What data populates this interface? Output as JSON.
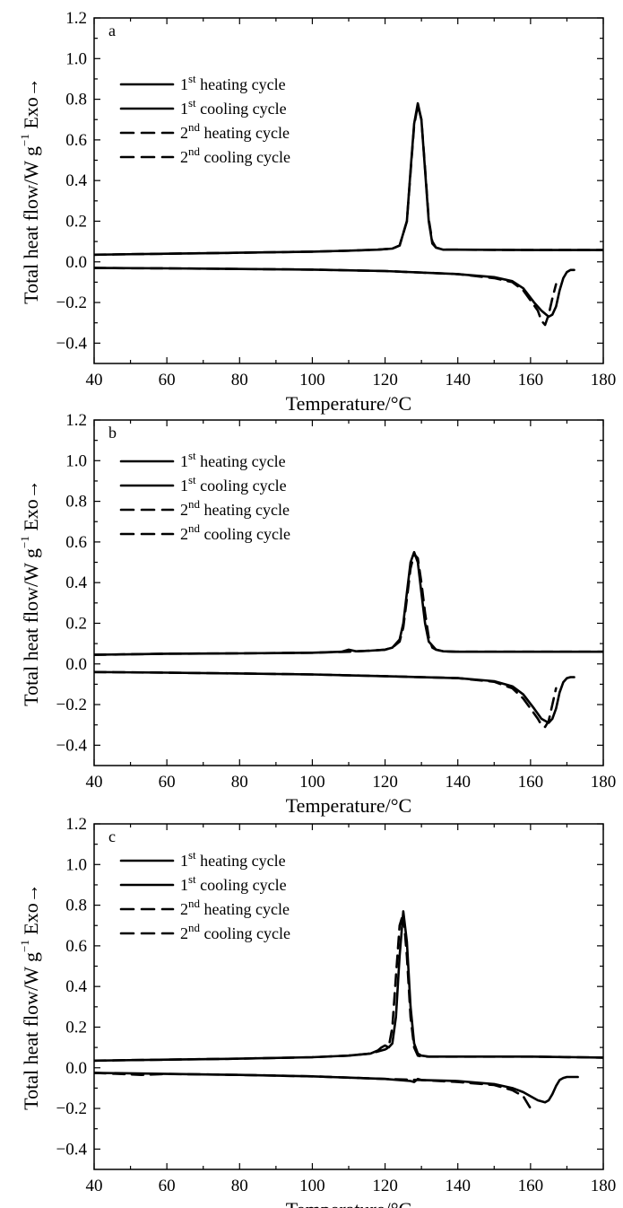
{
  "chart_data": [
    {
      "type": "line",
      "panel_label": "a",
      "xlabel": "Temperature/°C",
      "ylabel": "Total heat flow/W g",
      "ylabel_exp": "−1",
      "ylabel_suffix": "Exo→",
      "xlim": [
        40,
        180
      ],
      "ylim": [
        -0.5,
        1.2
      ],
      "xticks": [
        "40",
        "60",
        "80",
        "100",
        "120",
        "140",
        "160",
        "180"
      ],
      "yticks": [
        "−0.4",
        "−0.2",
        "0.0",
        "0.2",
        "0.4",
        "0.6",
        "0.8",
        "1.0",
        "1.2"
      ],
      "legend": [
        {
          "base": "1",
          "sup": "st",
          "text": " heating cycle",
          "style": "solid"
        },
        {
          "base": "1",
          "sup": "st",
          "text": " cooling cycle",
          "style": "solid"
        },
        {
          "base": "2",
          "sup": "nd",
          "text": "  heating cycle",
          "style": "dashed"
        },
        {
          "base": "2",
          "sup": "nd",
          "text": "  cooling cycle",
          "style": "dashed"
        }
      ],
      "series": [
        {
          "style": "solid",
          "x": [
            40,
            60,
            80,
            100,
            110,
            118,
            122,
            124,
            126,
            127,
            128,
            129,
            130,
            131,
            132,
            133,
            134,
            136,
            140,
            160,
            180
          ],
          "y": [
            0.035,
            0.04,
            0.045,
            0.05,
            0.055,
            0.06,
            0.065,
            0.08,
            0.2,
            0.45,
            0.68,
            0.78,
            0.7,
            0.45,
            0.2,
            0.09,
            0.07,
            0.06,
            0.06,
            0.058,
            0.058
          ]
        },
        {
          "style": "dashed",
          "x": [
            40,
            60,
            80,
            100,
            110,
            118,
            122,
            124,
            126,
            127,
            128,
            129,
            130,
            131,
            132,
            133,
            134,
            136,
            140,
            160,
            180
          ],
          "y": [
            0.035,
            0.04,
            0.045,
            0.05,
            0.055,
            0.06,
            0.065,
            0.08,
            0.2,
            0.44,
            0.67,
            0.77,
            0.7,
            0.46,
            0.21,
            0.1,
            0.07,
            0.06,
            0.06,
            0.058,
            0.058
          ]
        },
        {
          "style": "solid",
          "x": [
            40,
            60,
            80,
            100,
            120,
            140,
            150,
            155,
            158,
            161,
            163,
            165,
            166,
            167,
            168,
            169,
            170,
            171,
            172
          ],
          "y": [
            -0.03,
            -0.032,
            -0.035,
            -0.038,
            -0.045,
            -0.06,
            -0.075,
            -0.095,
            -0.13,
            -0.2,
            -0.24,
            -0.27,
            -0.26,
            -0.22,
            -0.14,
            -0.08,
            -0.05,
            -0.04,
            -0.04
          ]
        },
        {
          "style": "dashed",
          "x": [
            40,
            60,
            80,
            100,
            120,
            140,
            150,
            155,
            158,
            160,
            162,
            163,
            164,
            165,
            166,
            167
          ],
          "y": [
            -0.03,
            -0.032,
            -0.035,
            -0.038,
            -0.045,
            -0.06,
            -0.08,
            -0.1,
            -0.14,
            -0.19,
            -0.24,
            -0.29,
            -0.31,
            -0.26,
            -0.18,
            -0.11
          ]
        }
      ]
    },
    {
      "type": "line",
      "panel_label": "b",
      "xlabel": "Temperature/°C",
      "ylabel": "Total heat flow/W g",
      "ylabel_exp": "−1",
      "ylabel_suffix": "Exo→",
      "xlim": [
        40,
        180
      ],
      "ylim": [
        -0.5,
        1.2
      ],
      "xticks": [
        "40",
        "60",
        "80",
        "100",
        "120",
        "140",
        "160",
        "180"
      ],
      "yticks": [
        "−0.4",
        "−0.2",
        "0.0",
        "0.2",
        "0.4",
        "0.6",
        "0.8",
        "1.0",
        "1.2"
      ],
      "legend": [
        {
          "base": "1",
          "sup": "st",
          "text": " heating cycle",
          "style": "solid"
        },
        {
          "base": "1",
          "sup": "st",
          "text": " cooling cycle",
          "style": "solid"
        },
        {
          "base": "2",
          "sup": "nd",
          "text": "  heating cycle",
          "style": "dashed"
        },
        {
          "base": "2",
          "sup": "nd",
          "text": "  cooling cycle",
          "style": "dashed"
        }
      ],
      "series": [
        {
          "style": "solid",
          "x": [
            40,
            60,
            80,
            100,
            108,
            110,
            112,
            116,
            120,
            122,
            124,
            125,
            126,
            127,
            128,
            129,
            130,
            131,
            132,
            134,
            136,
            140,
            160,
            180
          ],
          "y": [
            0.045,
            0.05,
            0.052,
            0.055,
            0.06,
            0.07,
            0.062,
            0.065,
            0.07,
            0.08,
            0.12,
            0.2,
            0.35,
            0.5,
            0.55,
            0.5,
            0.35,
            0.2,
            0.11,
            0.07,
            0.062,
            0.06,
            0.06,
            0.06
          ]
        },
        {
          "style": "dashed",
          "x": [
            40,
            60,
            80,
            100,
            110,
            116,
            120,
            122,
            124,
            125,
            126,
            127,
            128,
            129,
            130,
            131,
            132,
            133,
            134,
            136,
            140,
            160,
            180
          ],
          "y": [
            0.045,
            0.05,
            0.052,
            0.055,
            0.06,
            0.065,
            0.07,
            0.08,
            0.11,
            0.18,
            0.32,
            0.47,
            0.54,
            0.52,
            0.4,
            0.25,
            0.13,
            0.08,
            0.07,
            0.062,
            0.06,
            0.06,
            0.06
          ]
        },
        {
          "style": "solid",
          "x": [
            40,
            60,
            80,
            100,
            120,
            140,
            150,
            155,
            158,
            161,
            163,
            165,
            166,
            167,
            168,
            169,
            170,
            171,
            172
          ],
          "y": [
            -0.04,
            -0.043,
            -0.047,
            -0.052,
            -0.06,
            -0.07,
            -0.085,
            -0.11,
            -0.15,
            -0.22,
            -0.27,
            -0.29,
            -0.27,
            -0.22,
            -0.14,
            -0.09,
            -0.07,
            -0.065,
            -0.065
          ]
        },
        {
          "style": "dashed",
          "x": [
            40,
            60,
            80,
            100,
            120,
            140,
            150,
            155,
            158,
            160,
            162,
            163,
            164,
            165,
            166,
            167
          ],
          "y": [
            -0.04,
            -0.043,
            -0.047,
            -0.052,
            -0.06,
            -0.07,
            -0.088,
            -0.12,
            -0.17,
            -0.22,
            -0.27,
            -0.3,
            -0.31,
            -0.28,
            -0.2,
            -0.12
          ]
        }
      ]
    },
    {
      "type": "line",
      "panel_label": "c",
      "xlabel": "Temperature/°C",
      "ylabel": "Total heat flow/W g",
      "ylabel_exp": "−1",
      "ylabel_suffix": "Exo→",
      "xlim": [
        40,
        180
      ],
      "ylim": [
        -0.5,
        1.2
      ],
      "xticks": [
        "40",
        "60",
        "80",
        "100",
        "120",
        "140",
        "160",
        "180"
      ],
      "yticks": [
        "−0.4",
        "−0.2",
        "0.0",
        "0.2",
        "0.4",
        "0.6",
        "0.8",
        "1.0",
        "1.2"
      ],
      "legend": [
        {
          "base": "1",
          "sup": "st",
          "text": " heating cycle",
          "style": "solid"
        },
        {
          "base": "1",
          "sup": "st",
          "text": " cooling cycle",
          "style": "solid"
        },
        {
          "base": "2",
          "sup": "nd",
          "text": "  heating cycle",
          "style": "dashed"
        },
        {
          "base": "2",
          "sup": "nd",
          "text": "  cooling cycle",
          "style": "dashed"
        }
      ],
      "series": [
        {
          "style": "solid",
          "x": [
            40,
            60,
            80,
            100,
            110,
            116,
            118,
            119,
            120,
            121,
            122,
            123,
            124,
            125,
            126,
            127,
            128,
            129,
            130,
            132,
            140,
            160,
            180
          ],
          "y": [
            0.035,
            0.04,
            0.045,
            0.052,
            0.06,
            0.07,
            0.085,
            0.1,
            0.11,
            0.1,
            0.12,
            0.25,
            0.55,
            0.77,
            0.62,
            0.3,
            0.12,
            0.07,
            0.06,
            0.055,
            0.055,
            0.055,
            0.05
          ]
        },
        {
          "style": "dashed",
          "x": [
            40,
            60,
            80,
            100,
            110,
            116,
            118,
            120,
            121,
            122,
            123,
            124,
            125,
            126,
            127,
            128,
            129,
            130,
            132,
            140,
            160,
            180
          ],
          "y": [
            0.035,
            0.04,
            0.045,
            0.052,
            0.06,
            0.07,
            0.08,
            0.09,
            0.1,
            0.2,
            0.45,
            0.7,
            0.76,
            0.55,
            0.25,
            0.1,
            0.06,
            0.055,
            0.055,
            0.055,
            0.055,
            0.05
          ]
        },
        {
          "style": "solid",
          "x": [
            40,
            60,
            80,
            100,
            120,
            127,
            128,
            129,
            130,
            140,
            150,
            155,
            158,
            160,
            162,
            164,
            165,
            166,
            167,
            168,
            169,
            170,
            172,
            173
          ],
          "y": [
            -0.025,
            -0.03,
            -0.035,
            -0.042,
            -0.055,
            -0.065,
            -0.07,
            -0.055,
            -0.06,
            -0.065,
            -0.08,
            -0.1,
            -0.12,
            -0.14,
            -0.16,
            -0.17,
            -0.16,
            -0.13,
            -0.09,
            -0.06,
            -0.05,
            -0.045,
            -0.045,
            -0.045
          ]
        },
        {
          "style": "dashed",
          "x": [
            40,
            53,
            60,
            80,
            100,
            120,
            130,
            140,
            150,
            155,
            158,
            159,
            160,
            161
          ],
          "y": [
            -0.025,
            -0.035,
            -0.03,
            -0.035,
            -0.042,
            -0.055,
            -0.06,
            -0.07,
            -0.085,
            -0.11,
            -0.14,
            -0.17,
            -0.2,
            -0.22
          ]
        }
      ]
    }
  ]
}
